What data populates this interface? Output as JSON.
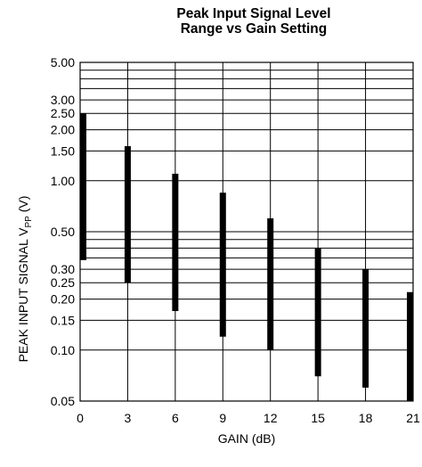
{
  "chart_data": {
    "type": "range-bar",
    "title_line1": "Peak Input Signal Level",
    "title_line2": "Range vs Gain Setting",
    "xlabel": "GAIN (dB)",
    "ylabel_main": "PEAK INPUT SIGNAL V",
    "ylabel_sub": "PP",
    "ylabel_unit": " (V)",
    "yscale": "log",
    "ylim": [
      0.05,
      5.0
    ],
    "xlim": [
      0,
      21
    ],
    "x_ticks": [
      0,
      3,
      6,
      9,
      12,
      15,
      18,
      21
    ],
    "y_tick_values": [
      0.05,
      0.1,
      0.15,
      0.2,
      0.25,
      0.3,
      0.5,
      1.0,
      1.5,
      2.0,
      2.5,
      3.0,
      5.0
    ],
    "y_tick_labels": [
      "0.05",
      "0.10",
      "0.15",
      "0.20",
      "0.25",
      "0.30",
      "0.50",
      "1.00",
      "1.50",
      "2.00",
      "2.50",
      "3.00",
      "5.00"
    ],
    "y_grid": [
      0.05,
      0.1,
      0.15,
      0.2,
      0.25,
      0.3,
      0.35,
      0.4,
      0.45,
      0.5,
      1.0,
      1.5,
      2.0,
      2.5,
      3.0,
      3.5,
      4.0,
      4.5,
      5.0
    ],
    "grid": true,
    "series": [
      {
        "x": [
          0,
          3,
          6,
          9,
          12,
          15,
          18,
          21
        ],
        "low": [
          0.34,
          0.25,
          0.17,
          0.12,
          0.1,
          0.07,
          0.06,
          0.05
        ],
        "high": [
          2.5,
          1.6,
          1.1,
          0.85,
          0.6,
          0.4,
          0.3,
          0.22
        ]
      }
    ],
    "bar_color": "#000000"
  }
}
